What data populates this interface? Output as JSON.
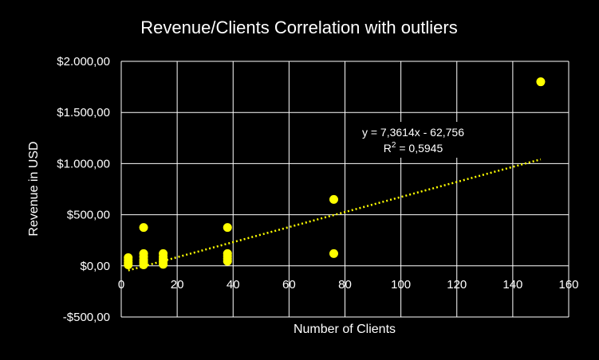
{
  "chart_data": {
    "type": "scatter",
    "title": "Revenue/Clients Correlation with outliers",
    "xlabel": "Number of Clients",
    "ylabel": "Revenue in USD",
    "xlim": [
      0,
      160
    ],
    "ylim": [
      -500,
      2000
    ],
    "x_ticks": [
      0,
      20,
      40,
      60,
      80,
      100,
      120,
      140,
      160
    ],
    "x_tick_labels": [
      "0",
      "20",
      "40",
      "60",
      "80",
      "100",
      "120",
      "140",
      "160"
    ],
    "y_ticks": [
      2000,
      1500,
      1000,
      500,
      0,
      -500
    ],
    "y_tick_labels": [
      "$2.000,00",
      "$1.500,00",
      "$1.000,00",
      "$500,00",
      "$0,00",
      "-$500,00"
    ],
    "grid": true,
    "legend": "none",
    "point_color": "#FFFF00",
    "points": [
      {
        "x": 2.5,
        "y": 80
      },
      {
        "x": 2.5,
        "y": 55
      },
      {
        "x": 2.5,
        "y": 30
      },
      {
        "x": 2.5,
        "y": 10
      },
      {
        "x": 8,
        "y": 375
      },
      {
        "x": 8,
        "y": 120
      },
      {
        "x": 8,
        "y": 90
      },
      {
        "x": 8,
        "y": 60
      },
      {
        "x": 8,
        "y": 35
      },
      {
        "x": 8,
        "y": 10
      },
      {
        "x": 15,
        "y": 120
      },
      {
        "x": 15,
        "y": 90
      },
      {
        "x": 15,
        "y": 65
      },
      {
        "x": 15,
        "y": 40
      },
      {
        "x": 15,
        "y": 15
      },
      {
        "x": 38,
        "y": 375
      },
      {
        "x": 38,
        "y": 120
      },
      {
        "x": 38,
        "y": 95
      },
      {
        "x": 38,
        "y": 70
      },
      {
        "x": 38,
        "y": 45
      },
      {
        "x": 76,
        "y": 650
      },
      {
        "x": 76,
        "y": 120
      },
      {
        "x": 150,
        "y": 1800
      }
    ],
    "trendline": {
      "type": "linear",
      "slope": 7.3614,
      "intercept": -62.756,
      "x_range": [
        2.5,
        150
      ],
      "color": "#FFFF00",
      "equation_text": "y = 7,3614x - 62,756",
      "r2_prefix": "R",
      "r2_sup": "2",
      "r2_value": " = 0,5945"
    }
  }
}
